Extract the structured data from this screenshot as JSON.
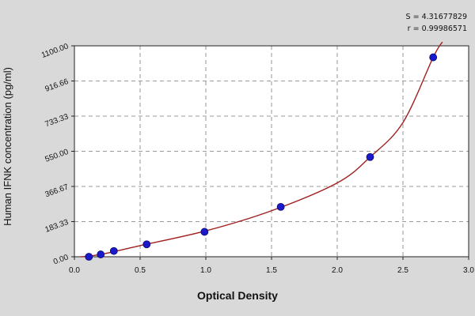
{
  "stats": {
    "s_line": "S = 4.31677829",
    "r_line": "r = 0.99986571"
  },
  "chart_data": {
    "type": "scatter",
    "title": "",
    "xlabel": "Optical Density",
    "ylabel": "Human IFNK concentration (pg/ml)",
    "xlim": [
      0.0,
      3.0
    ],
    "ylim": [
      0,
      1100
    ],
    "x_ticks": [
      0.0,
      0.5,
      1.0,
      1.5,
      2.0,
      2.5,
      3.0
    ],
    "x_tick_labels": [
      "0.0",
      "0.5",
      "1.0",
      "1.5",
      "2.0",
      "2.5",
      "3.0"
    ],
    "y_ticks": [
      0,
      183.33,
      366.67,
      550.0,
      733.33,
      916.66,
      1100.0
    ],
    "y_tick_labels": [
      "0.00",
      "183.33",
      "366.67",
      "550.00",
      "733.33",
      "916.66",
      "1100.00"
    ],
    "grid": true,
    "colors": {
      "points": "#1a1acc",
      "curve": "#a02020",
      "plot_bg": "#ffffff",
      "grid": "#7a7a7a"
    },
    "series": [
      {
        "values": [
          {
            "x": 0.11,
            "y": 0
          },
          {
            "x": 0.2,
            "y": 12
          },
          {
            "x": 0.3,
            "y": 30
          },
          {
            "x": 0.55,
            "y": 65
          },
          {
            "x": 0.99,
            "y": 130
          },
          {
            "x": 1.57,
            "y": 260
          },
          {
            "x": 2.25,
            "y": 520
          },
          {
            "x": 2.73,
            "y": 1040
          }
        ]
      }
    ],
    "fit_curve": [
      {
        "x": 0.05,
        "y": 0
      },
      {
        "x": 0.2,
        "y": 12
      },
      {
        "x": 0.5,
        "y": 58
      },
      {
        "x": 1.0,
        "y": 135
      },
      {
        "x": 1.5,
        "y": 240
      },
      {
        "x": 2.0,
        "y": 385
      },
      {
        "x": 2.25,
        "y": 520
      },
      {
        "x": 2.5,
        "y": 700
      },
      {
        "x": 2.73,
        "y": 1040
      },
      {
        "x": 2.8,
        "y": 1120
      }
    ]
  }
}
